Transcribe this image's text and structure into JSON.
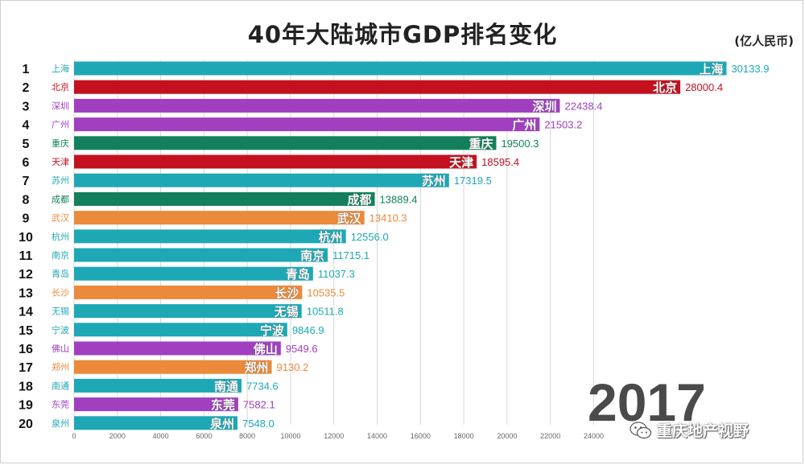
{
  "title": "40年大陆城市GDP排名变化",
  "unit": "(亿人民币)",
  "year": "2017",
  "watermark": "重庆地产视野",
  "colors": {
    "teal": "#1ea8b5",
    "red": "#c4111f",
    "purple": "#a040c0",
    "green": "#12805c",
    "orange": "#ea8a3a",
    "grid": "#d8d8d8"
  },
  "chart_data": {
    "type": "bar",
    "orientation": "horizontal",
    "title": "40年大陆城市GDP排名变化",
    "unit": "(亿人民币)",
    "xlim": [
      0,
      30600
    ],
    "x_ticks": [
      "0",
      "2000",
      "4000",
      "6000",
      "8000",
      "10000",
      "12000",
      "14000",
      "16000",
      "18000",
      "20000",
      "22000",
      "24000"
    ],
    "grid": true,
    "bars": [
      {
        "rank": "1",
        "city": "上海",
        "value": 30133.9,
        "label": "30133.9",
        "color": "#1ea8b5"
      },
      {
        "rank": "2",
        "city": "北京",
        "value": 28000.4,
        "label": "28000.4",
        "color": "#c4111f"
      },
      {
        "rank": "3",
        "city": "深圳",
        "value": 22438.4,
        "label": "22438.4",
        "color": "#a040c0"
      },
      {
        "rank": "4",
        "city": "广州",
        "value": 21503.2,
        "label": "21503.2",
        "color": "#a040c0"
      },
      {
        "rank": "5",
        "city": "重庆",
        "value": 19500.3,
        "label": "19500.3",
        "color": "#12805c"
      },
      {
        "rank": "6",
        "city": "天津",
        "value": 18595.4,
        "label": "18595.4",
        "color": "#c4111f"
      },
      {
        "rank": "7",
        "city": "苏州",
        "value": 17319.5,
        "label": "17319.5",
        "color": "#1ea8b5"
      },
      {
        "rank": "8",
        "city": "成都",
        "value": 13889.4,
        "label": "13889.4",
        "color": "#12805c"
      },
      {
        "rank": "9",
        "city": "武汉",
        "value": 13410.3,
        "label": "13410.3",
        "color": "#ea8a3a"
      },
      {
        "rank": "10",
        "city": "杭州",
        "value": 12556.0,
        "label": "12556.0",
        "color": "#1ea8b5"
      },
      {
        "rank": "11",
        "city": "南京",
        "value": 11715.1,
        "label": "11715.1",
        "color": "#1ea8b5"
      },
      {
        "rank": "12",
        "city": "青岛",
        "value": 11037.3,
        "label": "11037.3",
        "color": "#1ea8b5"
      },
      {
        "rank": "13",
        "city": "长沙",
        "value": 10535.5,
        "label": "10535.5",
        "color": "#ea8a3a"
      },
      {
        "rank": "14",
        "city": "无锡",
        "value": 10511.8,
        "label": "10511.8",
        "color": "#1ea8b5"
      },
      {
        "rank": "15",
        "city": "宁波",
        "value": 9846.9,
        "label": "9846.9",
        "color": "#1ea8b5"
      },
      {
        "rank": "16",
        "city": "佛山",
        "value": 9549.6,
        "label": "9549.6",
        "color": "#a040c0"
      },
      {
        "rank": "17",
        "city": "郑州",
        "value": 9130.2,
        "label": "9130.2",
        "color": "#ea8a3a"
      },
      {
        "rank": "18",
        "city": "南通",
        "value": 7734.6,
        "label": "7734.6",
        "color": "#1ea8b5"
      },
      {
        "rank": "19",
        "city": "东莞",
        "value": 7582.1,
        "label": "7582.1",
        "color": "#a040c0"
      },
      {
        "rank": "20",
        "city": "泉州",
        "value": 7548.0,
        "label": "7548.0",
        "color": "#1ea8b5"
      }
    ]
  }
}
